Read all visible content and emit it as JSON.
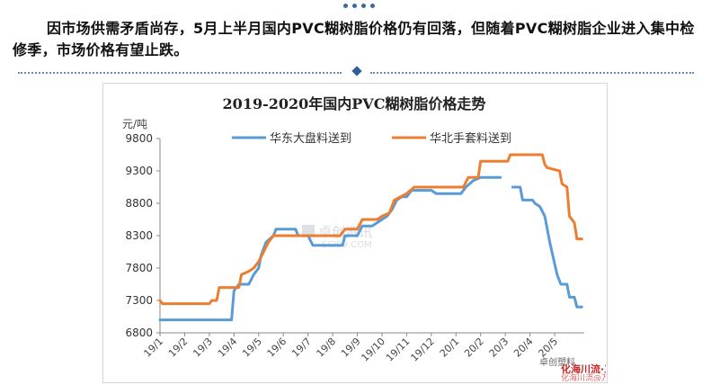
{
  "headline": "因市场供需矛盾尚存，5月上半月国内PVC糊树脂价格仍有回落，但随着PVC糊树脂企业进入集中检修季，市场价格有望止跌。",
  "watermark": {
    "center": "卓创资讯",
    "center_sub": "SCI99.COM",
    "bottom_left": "卓创塑料",
    "bottom_right_1": "化海川流·工业社群@HCBBS",
    "bottom_right_2": "化海川流@万象塑的新星"
  },
  "colors": {
    "series_east": "#5b9bd5",
    "series_north": "#ed7d31",
    "accent": "#2f5f9a"
  },
  "chart_data": {
    "type": "line",
    "title": "2019-2020年国内PVC糊树脂价格走势",
    "ylabel": "元/吨",
    "xlabel": "",
    "ylim": [
      6800,
      9800
    ],
    "yticks": [
      6800,
      7300,
      7800,
      8300,
      8800,
      9300,
      9800
    ],
    "xlim": [
      0,
      17.2
    ],
    "xticks": [
      "19/1",
      "19/2",
      "19/3",
      "19/4",
      "19/5",
      "19/6",
      "19/7",
      "19/8",
      "19/9",
      "19/10",
      "19/11",
      "19/12",
      "20/1",
      "20/2",
      "20/3",
      "20/4",
      "20/5"
    ],
    "grid": false,
    "legend_position": "top",
    "series": [
      {
        "name": "华东大盘料送到",
        "points": [
          [
            0,
            7000
          ],
          [
            2.9,
            7000
          ],
          [
            3.0,
            7450
          ],
          [
            3.2,
            7550
          ],
          [
            3.6,
            7550
          ],
          [
            3.8,
            7700
          ],
          [
            4.0,
            7800
          ],
          [
            4.1,
            8000
          ],
          [
            4.3,
            8200
          ],
          [
            4.6,
            8300
          ],
          [
            4.7,
            8400
          ],
          [
            5.5,
            8400
          ],
          [
            5.6,
            8300
          ],
          [
            6.0,
            8300
          ],
          [
            6.2,
            8150
          ],
          [
            7.4,
            8150
          ],
          [
            7.5,
            8300
          ],
          [
            8.0,
            8300
          ],
          [
            8.2,
            8450
          ],
          [
            8.6,
            8450
          ],
          [
            8.8,
            8500
          ],
          [
            9.0,
            8550
          ],
          [
            9.2,
            8600
          ],
          [
            9.4,
            8700
          ],
          [
            9.6,
            8850
          ],
          [
            9.8,
            8900
          ],
          [
            10.0,
            8900
          ],
          [
            10.2,
            9000
          ],
          [
            11.0,
            9000
          ],
          [
            11.2,
            8950
          ],
          [
            12.2,
            8950
          ],
          [
            12.4,
            9050
          ],
          [
            12.7,
            9150
          ],
          [
            13.0,
            9200
          ],
          [
            13.8,
            9200
          ],
          [
            null,
            null
          ],
          [
            14.3,
            9050
          ],
          [
            14.6,
            9050
          ],
          [
            14.7,
            8850
          ],
          [
            15.1,
            8850
          ],
          [
            15.2,
            8800
          ],
          [
            15.4,
            8750
          ],
          [
            15.6,
            8600
          ],
          [
            15.8,
            8200
          ],
          [
            15.95,
            7950
          ],
          [
            16.1,
            7700
          ],
          [
            16.25,
            7550
          ],
          [
            16.5,
            7550
          ],
          [
            16.6,
            7350
          ],
          [
            16.8,
            7350
          ],
          [
            16.9,
            7200
          ],
          [
            17.1,
            7200
          ]
        ]
      },
      {
        "name": "华北手套料送到",
        "points": [
          [
            0,
            7300
          ],
          [
            0.1,
            7250
          ],
          [
            2.0,
            7250
          ],
          [
            2.1,
            7300
          ],
          [
            2.3,
            7300
          ],
          [
            2.4,
            7500
          ],
          [
            3.2,
            7500
          ],
          [
            3.3,
            7700
          ],
          [
            3.6,
            7750
          ],
          [
            3.8,
            7800
          ],
          [
            4.0,
            7900
          ],
          [
            4.2,
            8050
          ],
          [
            4.4,
            8200
          ],
          [
            4.6,
            8300
          ],
          [
            6.0,
            8300
          ],
          [
            6.2,
            8300
          ],
          [
            7.3,
            8300
          ],
          [
            7.5,
            8400
          ],
          [
            8.0,
            8400
          ],
          [
            8.2,
            8550
          ],
          [
            8.8,
            8550
          ],
          [
            9.0,
            8600
          ],
          [
            9.3,
            8650
          ],
          [
            9.5,
            8850
          ],
          [
            10.0,
            8950
          ],
          [
            10.3,
            9050
          ],
          [
            12.3,
            9050
          ],
          [
            12.5,
            9200
          ],
          [
            12.9,
            9200
          ],
          [
            13.0,
            9450
          ],
          [
            14.1,
            9450
          ],
          [
            14.2,
            9550
          ],
          [
            15.5,
            9550
          ],
          [
            15.6,
            9400
          ],
          [
            15.7,
            9350
          ],
          [
            16.2,
            9300
          ],
          [
            16.3,
            9100
          ],
          [
            16.5,
            9050
          ],
          [
            16.6,
            8600
          ],
          [
            16.8,
            8500
          ],
          [
            16.9,
            8250
          ],
          [
            17.1,
            8250
          ]
        ]
      }
    ]
  }
}
